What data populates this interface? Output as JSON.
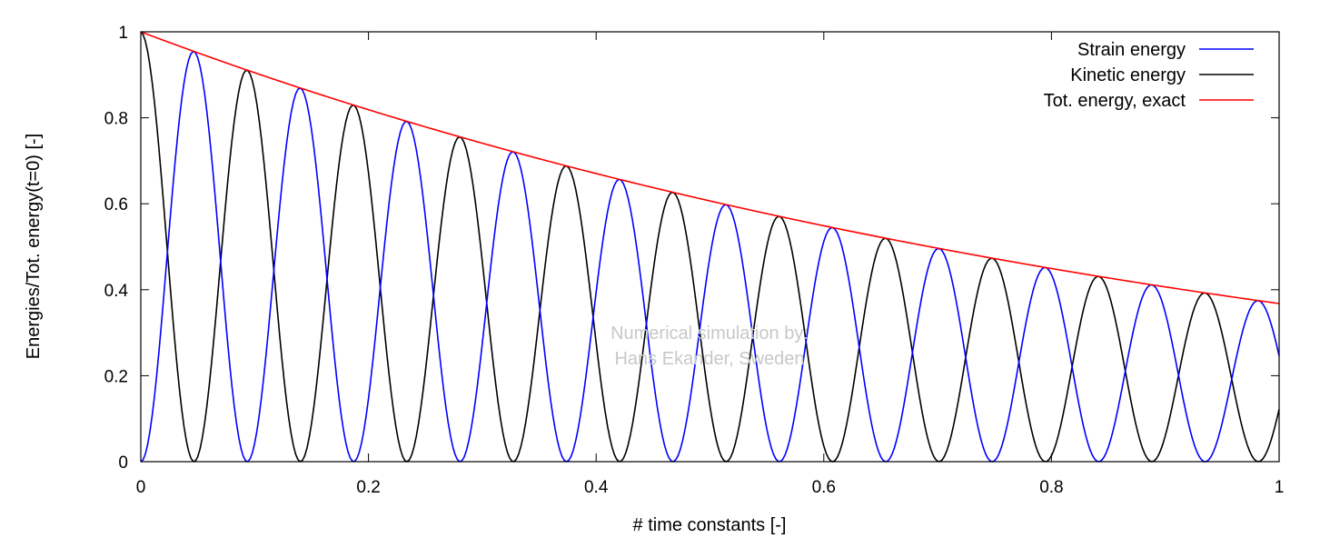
{
  "chart_data": {
    "type": "line",
    "title": "",
    "xlabel": "# time constants [-]",
    "ylabel": "Energies/Tot. energy(t=0) [-]",
    "xlim": [
      0,
      1
    ],
    "ylim": [
      0,
      1
    ],
    "xticks": [
      "0",
      "0.2",
      "0.4",
      "0.6",
      "0.8",
      "1"
    ],
    "yticks": [
      "0",
      "0.2",
      "0.4",
      "0.6",
      "0.8",
      "1"
    ],
    "grid": false,
    "legend_position": "top-right",
    "oscillation_period": 0.0935,
    "decay": "exp(-t)",
    "sample_step": 0.002,
    "series": [
      {
        "name": "Strain energy",
        "color": "#0000ff",
        "formula": "exp(-t)*sin^2(pi*t/0.0935)"
      },
      {
        "name": "Kinetic energy",
        "color": "#000000",
        "formula": "exp(-t)*cos^2(pi*t/0.0935)"
      },
      {
        "name": "Tot. energy, exact",
        "color": "#ff0000",
        "formula": "exp(-t)"
      }
    ],
    "annotations": [
      "Numerical simulation by:",
      "Hans Ekander, Sweden"
    ]
  }
}
